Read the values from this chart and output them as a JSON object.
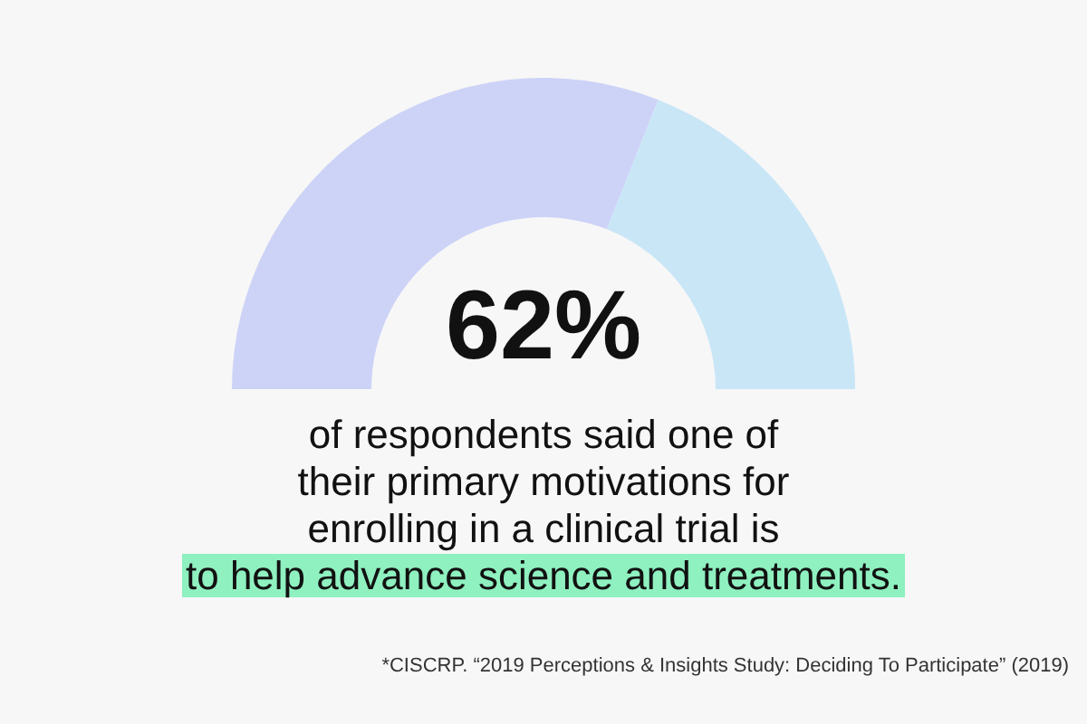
{
  "chart_data": {
    "type": "donut",
    "categories": [
      null,
      null
    ],
    "values": [
      62,
      38
    ],
    "colors": [
      "#cdd3f7",
      "#c9e6f7"
    ],
    "value_labels": [
      "62%",
      null
    ],
    "subtitle": "of respondents said one of\ntheir primary motivations for\nenrolling in a clinical trial is\nto help advance science and treatments.",
    "annotations": [
      "*CISCRP. “2019 Perceptions & Insights Study: Deciding To Participate” (2019)"
    ]
  }
}
